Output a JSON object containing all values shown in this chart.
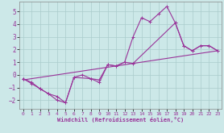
{
  "xlabel": "Windchill (Refroidissement éolien,°C)",
  "line_color": "#993399",
  "bg_color": "#cce8e8",
  "grid_color": "#aacccc",
  "xlim": [
    -0.5,
    23.5
  ],
  "ylim": [
    -2.7,
    5.8
  ],
  "xticks": [
    0,
    1,
    2,
    3,
    4,
    5,
    6,
    7,
    8,
    9,
    10,
    11,
    12,
    13,
    14,
    15,
    16,
    17,
    18,
    19,
    20,
    21,
    22,
    23
  ],
  "yticks": [
    -2,
    -1,
    0,
    1,
    2,
    3,
    4,
    5
  ],
  "line1_x": [
    0,
    1,
    2,
    3,
    4,
    5,
    6,
    7,
    8,
    9,
    10,
    11,
    12,
    13,
    14,
    15,
    16,
    17,
    18,
    19,
    20,
    21,
    22,
    23
  ],
  "line1_y": [
    -0.3,
    -0.7,
    -1.1,
    -1.5,
    -1.7,
    -2.2,
    -0.2,
    0.0,
    -0.3,
    -0.6,
    0.8,
    0.7,
    1.0,
    3.0,
    4.5,
    4.2,
    4.8,
    5.4,
    4.1,
    2.3,
    1.9,
    2.3,
    2.3,
    1.9
  ],
  "line2_x": [
    0,
    1,
    2,
    3,
    4,
    5,
    6,
    8,
    9,
    10,
    11,
    12,
    13,
    18,
    19,
    20,
    21,
    22,
    23
  ],
  "line2_y": [
    -0.3,
    -0.6,
    -1.1,
    -1.5,
    -2.0,
    -2.2,
    -0.2,
    -0.3,
    -0.4,
    0.8,
    0.7,
    1.0,
    0.9,
    4.1,
    2.3,
    1.9,
    2.3,
    2.3,
    1.9
  ],
  "line3_x": [
    0,
    23
  ],
  "line3_y": [
    -0.4,
    1.9
  ]
}
